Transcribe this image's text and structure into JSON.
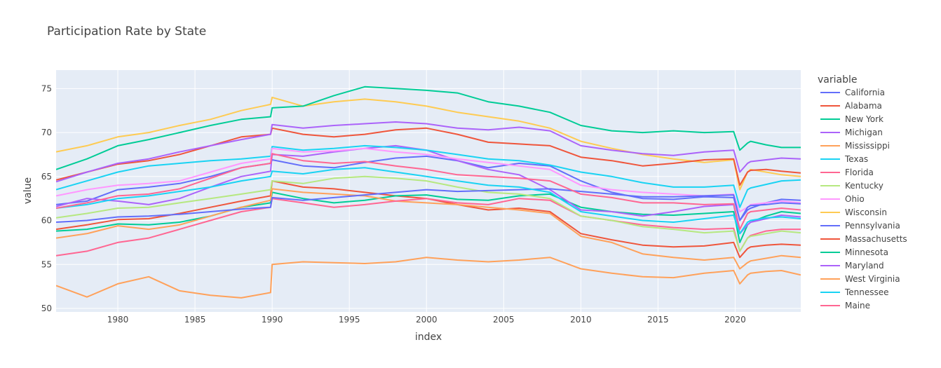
{
  "chart_data": {
    "type": "line",
    "title": "Participation Rate by State",
    "xlabel": "index",
    "ylabel": "value",
    "xlim": [
      1976,
      2024.25
    ],
    "ylim": [
      49.6,
      77.1
    ],
    "x_ticks": [
      1980,
      1985,
      1990,
      1995,
      2000,
      2005,
      2010,
      2015,
      2020
    ],
    "y_ticks": [
      50,
      55,
      60,
      65,
      70,
      75
    ],
    "grid": true,
    "legend_title": "variable",
    "legend_position": "right",
    "x": [
      1976,
      1978,
      1980,
      1982,
      1984,
      1986,
      1988,
      1989.9,
      1990,
      1992,
      1994,
      1996,
      1998,
      2000,
      2002,
      2004,
      2006,
      2008,
      2010,
      2012,
      2014,
      2016,
      2018,
      2019.9,
      2020.3,
      2020.8,
      2021,
      2022,
      2023,
      2024.25
    ],
    "series": [
      {
        "name": "California",
        "color": "#636EFA",
        "values": [
          61.8,
          62.2,
          63.5,
          63.8,
          64.2,
          65.0,
          66.0,
          66.5,
          66.9,
          66.2,
          66.0,
          66.6,
          67.1,
          67.3,
          66.8,
          66.0,
          66.5,
          66.2,
          64.5,
          63.2,
          62.5,
          62.4,
          62.7,
          62.6,
          60.0,
          61.2,
          61.4,
          62.0,
          62.4,
          62.3
        ]
      },
      {
        "name": "Alabama",
        "color": "#EF553B",
        "values": [
          59.0,
          59.5,
          60.1,
          60.2,
          60.8,
          61.5,
          62.2,
          62.8,
          64.5,
          63.8,
          63.6,
          63.2,
          62.8,
          62.5,
          61.8,
          61.2,
          61.4,
          61.0,
          58.5,
          57.8,
          57.2,
          57.0,
          57.1,
          57.5,
          55.8,
          56.8,
          57.0,
          57.2,
          57.3,
          57.2
        ]
      },
      {
        "name": "New York",
        "color": "#00CC96",
        "values": [
          58.8,
          59.0,
          59.6,
          59.5,
          59.8,
          60.5,
          61.5,
          62.0,
          63.2,
          62.5,
          62.0,
          62.3,
          62.8,
          62.9,
          62.4,
          62.3,
          62.8,
          63.0,
          61.5,
          61.0,
          60.7,
          60.6,
          60.8,
          61.0,
          57.5,
          59.5,
          59.8,
          60.5,
          61.0,
          60.8
        ]
      },
      {
        "name": "Michigan",
        "color": "#AB63FA",
        "values": [
          61.6,
          62.5,
          62.2,
          61.8,
          62.5,
          63.8,
          65.0,
          65.6,
          67.5,
          67.3,
          67.8,
          68.2,
          68.5,
          68.0,
          66.8,
          65.8,
          65.2,
          63.5,
          61.2,
          61.0,
          60.5,
          61.0,
          61.6,
          61.8,
          58.5,
          59.5,
          59.8,
          60.2,
          60.6,
          60.4
        ]
      },
      {
        "name": "Mississippi",
        "color": "#FFA15A",
        "values": [
          58.0,
          58.5,
          59.4,
          59.0,
          59.5,
          60.5,
          61.5,
          62.3,
          63.6,
          63.2,
          63.0,
          62.8,
          62.2,
          62.0,
          61.8,
          61.5,
          61.2,
          60.8,
          58.2,
          57.5,
          56.2,
          55.8,
          55.5,
          55.8,
          54.5,
          55.2,
          55.4,
          55.7,
          56.0,
          55.8
        ]
      },
      {
        "name": "Texas",
        "color": "#19D3F3",
        "values": [
          63.5,
          64.5,
          65.5,
          66.2,
          66.5,
          66.8,
          67.0,
          67.3,
          68.4,
          68.0,
          68.2,
          68.5,
          68.3,
          68.0,
          67.5,
          67.0,
          66.8,
          66.3,
          65.5,
          65.0,
          64.3,
          63.8,
          63.8,
          64.0,
          61.5,
          63.5,
          63.7,
          64.1,
          64.5,
          64.6
        ]
      },
      {
        "name": "Florida",
        "color": "#FF6692",
        "values": [
          56.0,
          56.5,
          57.5,
          58.0,
          59.0,
          60.0,
          61.0,
          61.5,
          62.5,
          62.0,
          61.5,
          61.8,
          62.2,
          62.5,
          62.0,
          61.8,
          62.5,
          62.3,
          60.5,
          60.0,
          59.5,
          59.2,
          59.0,
          59.1,
          56.5,
          58.0,
          58.3,
          58.8,
          59.0,
          59.0
        ]
      },
      {
        "name": "Kentucky",
        "color": "#B6E880",
        "values": [
          60.3,
          60.8,
          61.4,
          61.5,
          62.0,
          62.5,
          63.0,
          63.5,
          64.5,
          64.2,
          64.8,
          65.0,
          64.8,
          64.5,
          63.8,
          63.2,
          63.0,
          62.5,
          60.5,
          60.0,
          59.3,
          59.0,
          58.6,
          58.8,
          56.5,
          58.0,
          58.2,
          58.5,
          58.8,
          58.6
        ]
      },
      {
        "name": "Ohio",
        "color": "#FF97FF",
        "values": [
          62.8,
          63.5,
          64.0,
          64.2,
          64.5,
          65.5,
          66.5,
          67.0,
          68.2,
          67.8,
          67.9,
          68.2,
          67.8,
          67.5,
          67.0,
          66.6,
          66.2,
          65.8,
          64.0,
          63.5,
          63.2,
          63.0,
          62.8,
          63.0,
          61.0,
          61.5,
          61.8,
          62.0,
          62.2,
          62.0
        ]
      },
      {
        "name": "Wisconsin",
        "color": "#FECB52",
        "values": [
          67.8,
          68.5,
          69.5,
          70.0,
          70.8,
          71.5,
          72.5,
          73.2,
          74.0,
          73.0,
          73.5,
          73.8,
          73.5,
          73.0,
          72.3,
          71.8,
          71.3,
          70.5,
          69.0,
          68.2,
          67.5,
          67.0,
          66.6,
          66.9,
          63.5,
          65.5,
          65.8,
          65.5,
          65.2,
          65.0
        ]
      },
      {
        "name": "Pennsylvania",
        "color": "#636EFA",
        "values": [
          59.8,
          60.0,
          60.4,
          60.5,
          60.7,
          61.0,
          61.3,
          61.5,
          62.6,
          62.3,
          62.6,
          62.9,
          63.2,
          63.5,
          63.3,
          63.4,
          63.5,
          63.6,
          63.3,
          63.0,
          62.7,
          62.7,
          62.8,
          62.9,
          60.0,
          61.5,
          61.7,
          61.8,
          62.0,
          61.9
        ]
      },
      {
        "name": "Massachusetts",
        "color": "#EF553B",
        "values": [
          64.6,
          65.5,
          66.4,
          66.8,
          67.5,
          68.5,
          69.5,
          69.8,
          70.5,
          69.8,
          69.5,
          69.8,
          70.3,
          70.5,
          69.8,
          68.9,
          68.7,
          68.5,
          67.2,
          66.8,
          66.2,
          66.5,
          66.9,
          67.0,
          64.0,
          65.5,
          65.7,
          65.8,
          65.6,
          65.4
        ]
      },
      {
        "name": "Minnesota",
        "color": "#00CC96",
        "values": [
          65.8,
          67.0,
          68.5,
          69.2,
          70.0,
          70.8,
          71.5,
          71.8,
          72.8,
          73.0,
          74.2,
          75.2,
          75.0,
          74.8,
          74.5,
          73.5,
          73.0,
          72.3,
          70.8,
          70.2,
          70.0,
          70.2,
          70.0,
          70.1,
          68.0,
          68.8,
          69.0,
          68.6,
          68.3,
          68.3
        ]
      },
      {
        "name": "Maryland",
        "color": "#AB63FA",
        "values": [
          64.4,
          65.5,
          66.5,
          67.0,
          67.8,
          68.5,
          69.2,
          69.8,
          70.9,
          70.5,
          70.8,
          71.0,
          71.2,
          71.0,
          70.5,
          70.3,
          70.6,
          70.2,
          68.5,
          68.0,
          67.6,
          67.4,
          67.8,
          68.0,
          65.5,
          66.5,
          66.7,
          66.9,
          67.1,
          67.0
        ]
      },
      {
        "name": "West Virginia",
        "color": "#FFA15A",
        "values": [
          52.6,
          51.3,
          52.8,
          53.6,
          52.0,
          51.5,
          51.2,
          51.8,
          55.0,
          55.3,
          55.2,
          55.1,
          55.3,
          55.8,
          55.5,
          55.3,
          55.5,
          55.8,
          54.5,
          54.0,
          53.6,
          53.5,
          54.0,
          54.3,
          52.8,
          53.8,
          54.0,
          54.2,
          54.3,
          53.8
        ]
      },
      {
        "name": "Tennessee",
        "color": "#19D3F3",
        "values": [
          61.4,
          61.8,
          62.5,
          62.8,
          63.3,
          63.8,
          64.5,
          65.0,
          65.6,
          65.3,
          65.8,
          66.0,
          65.5,
          65.0,
          64.5,
          64.0,
          63.8,
          63.2,
          61.0,
          60.5,
          60.0,
          59.8,
          60.2,
          60.6,
          58.5,
          59.8,
          60.0,
          60.3,
          60.4,
          60.2
        ]
      },
      {
        "name": "Maine",
        "color": "#FF6692",
        "values": [
          61.4,
          62.0,
          62.8,
          63.0,
          63.6,
          64.8,
          66.0,
          66.5,
          67.6,
          66.8,
          66.5,
          66.7,
          66.2,
          65.8,
          65.2,
          65.0,
          64.8,
          64.5,
          63.0,
          62.6,
          62.0,
          62.0,
          61.8,
          61.9,
          59.0,
          60.8,
          61.0,
          61.2,
          61.4,
          61.2
        ]
      }
    ]
  }
}
